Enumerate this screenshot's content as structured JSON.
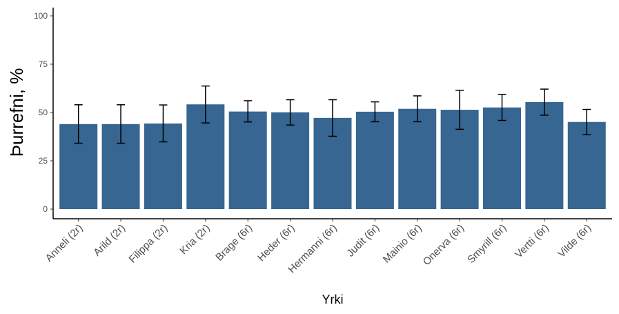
{
  "chart_data": {
    "type": "bar",
    "title": "",
    "xlabel": "Yrki",
    "ylabel": "Þurrefni, %",
    "ylim": [
      0,
      100
    ],
    "yticks": [
      0,
      25,
      50,
      75,
      100
    ],
    "yticks_labels": [
      "0",
      "25",
      "50",
      "75",
      "100"
    ],
    "grid": false,
    "legend": "none",
    "bar_color": "#366691",
    "errorbar_color": "#000000",
    "categories": [
      "Anneli (2r)",
      "Arild (2r)",
      "Filippa (2r)",
      "Kria (2r)",
      "Brage (6r)",
      "Heder (6r)",
      "Hermanni (6r)",
      "Judit (6r)",
      "Mainio (6r)",
      "Onerva (6r)",
      "Smyrill (6r)",
      "Vertti (6r)",
      "Vilde (6r)"
    ],
    "values": [
      44,
      44,
      44.3,
      54.2,
      50.5,
      50.1,
      47.2,
      50.4,
      51.9,
      51.4,
      52.6,
      55.4,
      45.1
    ],
    "error_low": [
      34.1,
      34.1,
      34.8,
      44.6,
      45.1,
      43.5,
      37.7,
      45.2,
      45.2,
      41.3,
      45.9,
      48.6,
      38.5
    ],
    "error_high": [
      54,
      54,
      53.9,
      63.7,
      56.1,
      56.6,
      56.6,
      55.5,
      58.6,
      61.5,
      59.4,
      62.1,
      51.6
    ]
  }
}
